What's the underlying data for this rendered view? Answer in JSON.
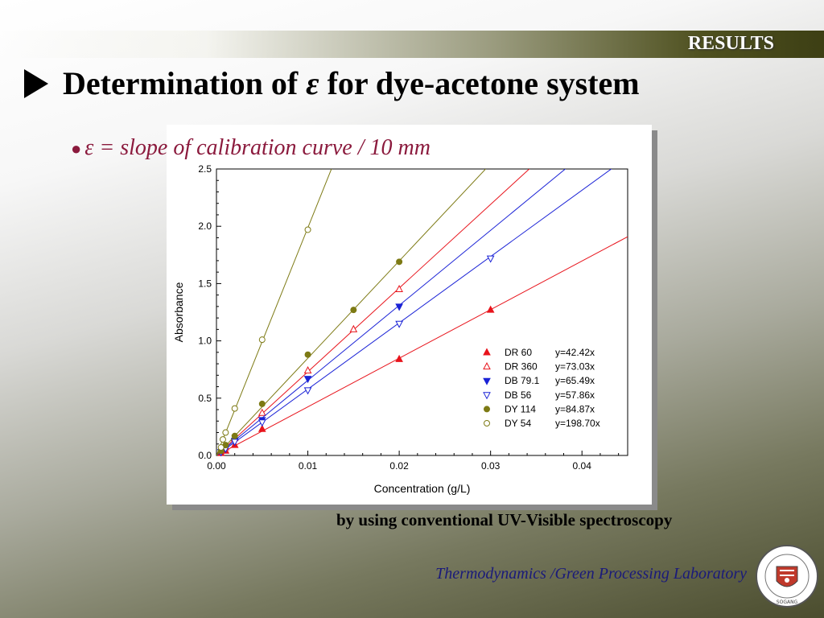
{
  "header": {
    "section_label": "RESULTS",
    "title_prefix": "Determination of ",
    "title_symbol": "ε",
    "title_suffix": " for dye-acetone system"
  },
  "bullet": {
    "text": "ε = slope of calibration curve / 10 mm"
  },
  "caption": "by using conventional UV-Visible spectroscopy",
  "footer": {
    "lab_name": "Thermodynamics /Green Processing Laboratory",
    "seal_text": "서 강 대 학 교 · Sogang University"
  },
  "chart_data": {
    "type": "scatter",
    "xlabel": "Concentration (g/L)",
    "ylabel": "Absorbance",
    "xlim": [
      0,
      0.045
    ],
    "ylim": [
      0,
      2.5
    ],
    "x_ticks": [
      "0.00",
      "0.01",
      "0.02",
      "0.03",
      "0.04"
    ],
    "y_ticks": [
      "0.0",
      "0.5",
      "1.0",
      "1.5",
      "2.0",
      "2.5"
    ],
    "grid": false,
    "legend_position": "bottom-right",
    "series": [
      {
        "name": "DR 60",
        "equation": "y=42.42x",
        "slope": 42.42,
        "color": "#e8141c",
        "marker": "triangle-up",
        "filled": true,
        "points": [
          [
            0.0005,
            0.02
          ],
          [
            0.001,
            0.04
          ],
          [
            0.002,
            0.09
          ],
          [
            0.005,
            0.23
          ],
          [
            0.02,
            0.84
          ],
          [
            0.03,
            1.27
          ]
        ]
      },
      {
        "name": "DR 360",
        "equation": "y=73.03x",
        "slope": 73.03,
        "color": "#e8141c",
        "marker": "triangle-up",
        "filled": false,
        "points": [
          [
            0.0005,
            0.04
          ],
          [
            0.001,
            0.07
          ],
          [
            0.002,
            0.15
          ],
          [
            0.005,
            0.37
          ],
          [
            0.01,
            0.74
          ],
          [
            0.015,
            1.1
          ],
          [
            0.02,
            1.45
          ]
        ]
      },
      {
        "name": "DB 79.1",
        "equation": "y=65.49x",
        "slope": 65.49,
        "color": "#1a22d6",
        "marker": "triangle-down",
        "filled": true,
        "points": [
          [
            0.0005,
            0.03
          ],
          [
            0.001,
            0.06
          ],
          [
            0.002,
            0.13
          ],
          [
            0.005,
            0.31
          ],
          [
            0.01,
            0.67
          ],
          [
            0.02,
            1.3
          ]
        ]
      },
      {
        "name": "DB 56",
        "equation": "y=57.86x",
        "slope": 57.86,
        "color": "#1a22d6",
        "marker": "triangle-down",
        "filled": false,
        "points": [
          [
            0.0005,
            0.03
          ],
          [
            0.001,
            0.06
          ],
          [
            0.002,
            0.12
          ],
          [
            0.005,
            0.29
          ],
          [
            0.01,
            0.57
          ],
          [
            0.02,
            1.15
          ],
          [
            0.03,
            1.72
          ]
        ]
      },
      {
        "name": "DY 114",
        "equation": "y=84.87x",
        "slope": 84.87,
        "color": "#7d7a14",
        "marker": "circle",
        "filled": true,
        "points": [
          [
            0.0005,
            0.04
          ],
          [
            0.001,
            0.09
          ],
          [
            0.002,
            0.17
          ],
          [
            0.005,
            0.45
          ],
          [
            0.01,
            0.88
          ],
          [
            0.015,
            1.27
          ],
          [
            0.02,
            1.69
          ]
        ]
      },
      {
        "name": "DY 54",
        "equation": "y=198.70x",
        "slope": 198.7,
        "color": "#7d7a14",
        "marker": "circle",
        "filled": false,
        "points": [
          [
            0.0005,
            0.07
          ],
          [
            0.0007,
            0.14
          ],
          [
            0.001,
            0.2
          ],
          [
            0.002,
            0.41
          ],
          [
            0.005,
            1.01
          ],
          [
            0.01,
            1.97
          ]
        ]
      }
    ]
  }
}
